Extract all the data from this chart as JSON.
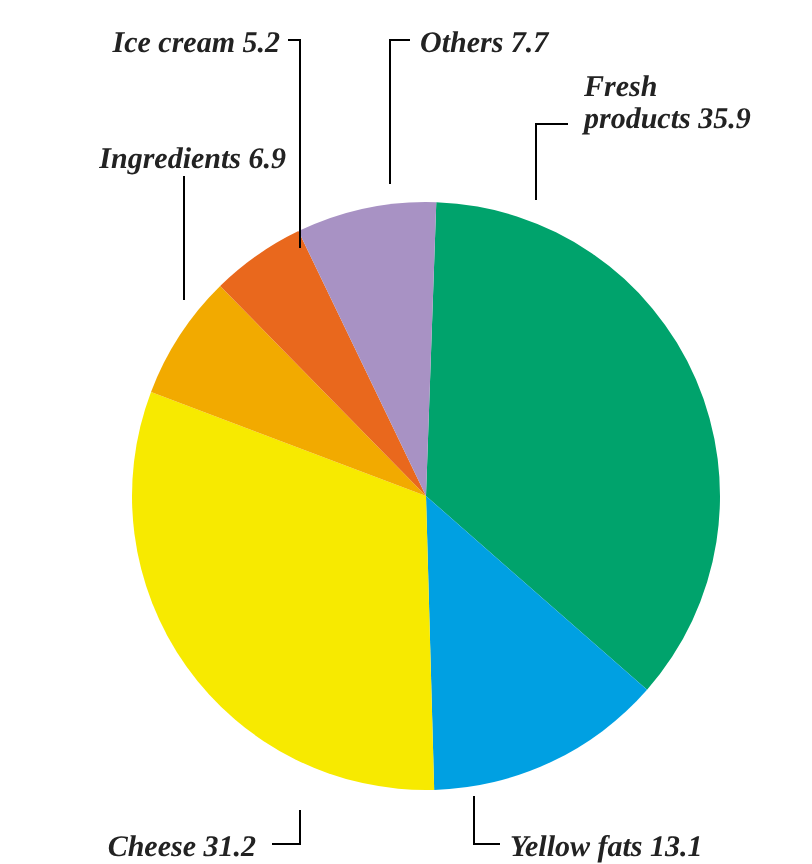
{
  "chart_data": {
    "type": "pie",
    "categories": [
      "Fresh products 35.9",
      "Yellow fats 13.1",
      "Cheese 31.2",
      "Ingredients 6.9",
      "Ice cream 5.2",
      "Others 7.7"
    ],
    "values": [
      35.9,
      13.1,
      31.2,
      6.9,
      5.2,
      7.7
    ],
    "colors": [
      "#00a36c",
      "#00a0e2",
      "#f7ea00",
      "#f2aa00",
      "#e9681d",
      "#a892c4"
    ]
  }
}
